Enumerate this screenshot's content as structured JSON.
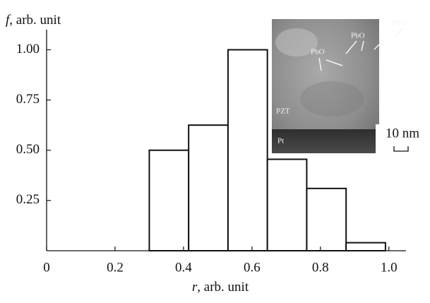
{
  "chart_data": {
    "type": "histogram",
    "ylabel": {
      "symbol": "f",
      "rest": ", arb. unit"
    },
    "xlabel": {
      "symbol": "r",
      "rest": ", arb. unit"
    },
    "bins": [
      0.3,
      0.415,
      0.53,
      0.645,
      0.76,
      0.875,
      0.99
    ],
    "values": [
      0.5,
      0.625,
      1.0,
      0.455,
      0.31,
      0.04
    ],
    "color": "#ffffff",
    "edge_color": "#111111",
    "xlim": [
      0,
      1.05
    ],
    "ylim": [
      0,
      1.1
    ],
    "xticks": [
      0,
      0.2,
      0.4,
      0.6,
      0.8,
      {
        "value": 1.0,
        "label": "1.0"
      }
    ],
    "yticks": [
      0.25,
      {
        "value": 0.5,
        "label": "0.50"
      },
      0.75,
      {
        "value": 1.0,
        "label": "1.00"
      }
    ],
    "inset": {
      "labels": [
        "PbO",
        "PbO",
        "PbO",
        "PZT",
        "Pt"
      ],
      "scale_bar": "10 nm"
    }
  }
}
